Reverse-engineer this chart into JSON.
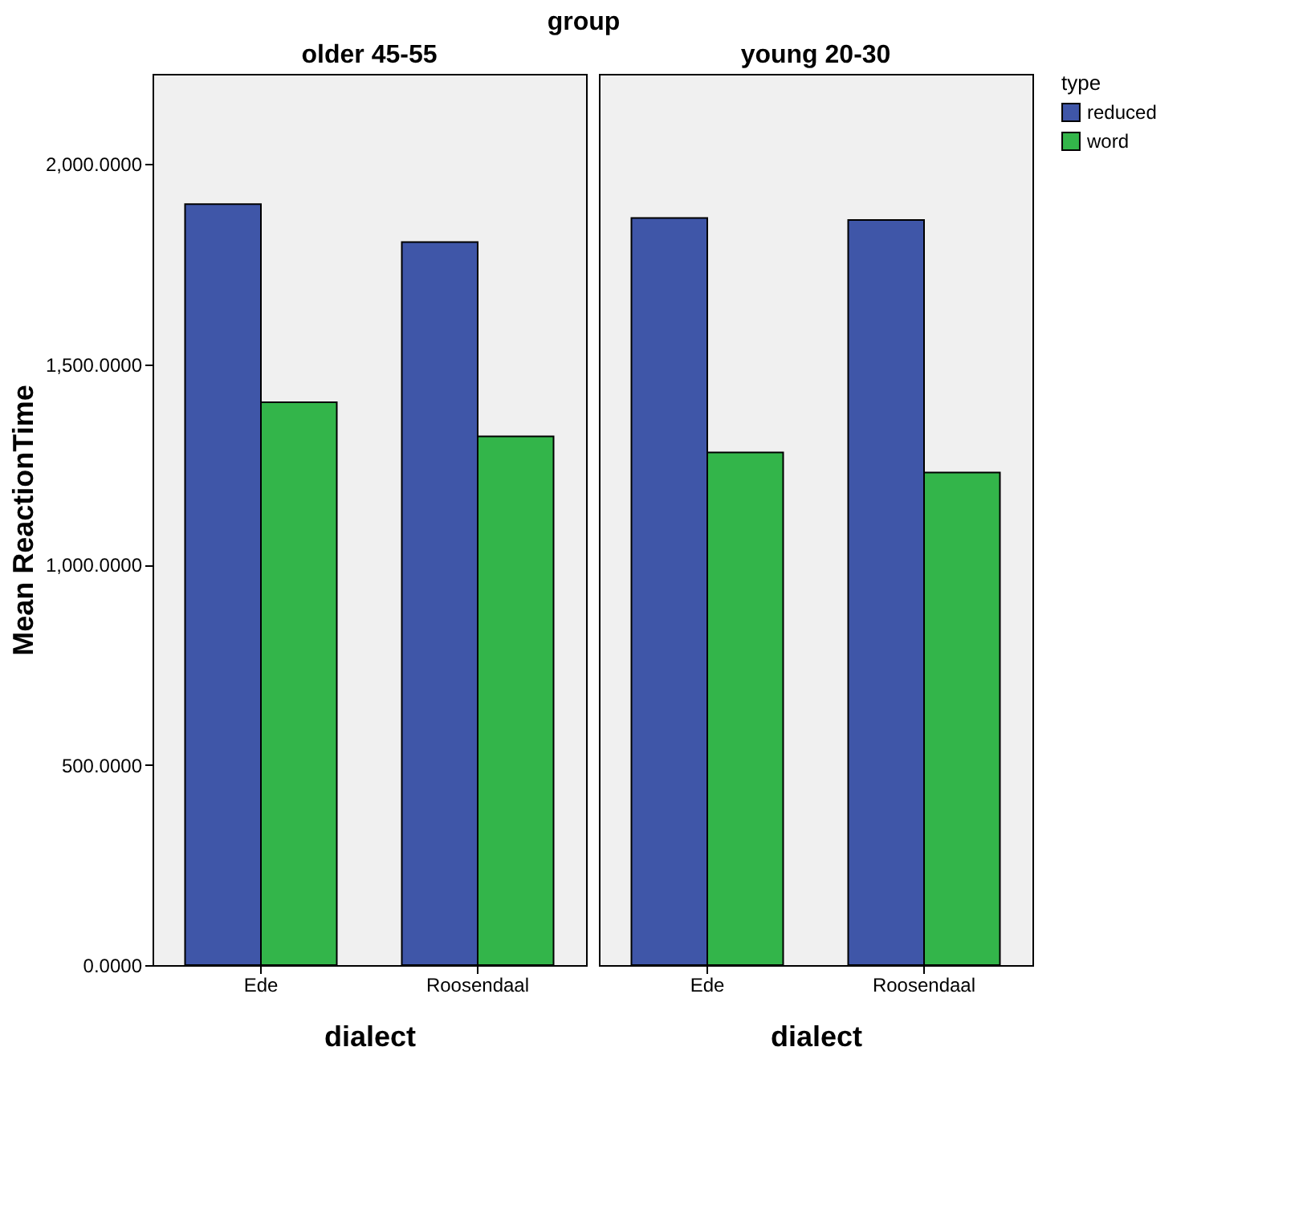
{
  "chart_data": [
    {
      "type": "bar",
      "title": "older 45-55",
      "xlabel": "dialect",
      "ylabel": "Mean ReactionTime",
      "annotations": [
        "group"
      ],
      "categories": [
        "Ede",
        "Roosendaal"
      ],
      "series": [
        {
          "color": "#3f56a8",
          "values": [
            1900,
            1805
          ]
        },
        {
          "color": "#33b54a",
          "values": [
            1405,
            1320
          ]
        }
      ],
      "ylim": [
        0,
        2225
      ],
      "yticks": [
        {
          "value": 0,
          "label": "0.0000"
        },
        {
          "value": 500,
          "label": "500.0000"
        },
        {
          "value": 1000,
          "label": "1,000.0000"
        },
        {
          "value": 1500,
          "label": "1,500.0000"
        },
        {
          "value": 2000,
          "label": "2,000.0000"
        }
      ],
      "grid": false,
      "legend": false
    },
    {
      "type": "bar",
      "title": "young 20-30",
      "xlabel": "dialect",
      "legend_title": "type",
      "categories": [
        "Ede",
        "Roosendaal"
      ],
      "series": [
        {
          "name": "reduced",
          "color": "#3f56a8",
          "values": [
            1865,
            1860
          ]
        },
        {
          "name": "word",
          "color": "#33b54a",
          "values": [
            1280,
            1230
          ]
        }
      ],
      "ylim": [
        0,
        2225
      ],
      "tick_labels": "x",
      "grid": false,
      "legend": "top right"
    }
  ]
}
